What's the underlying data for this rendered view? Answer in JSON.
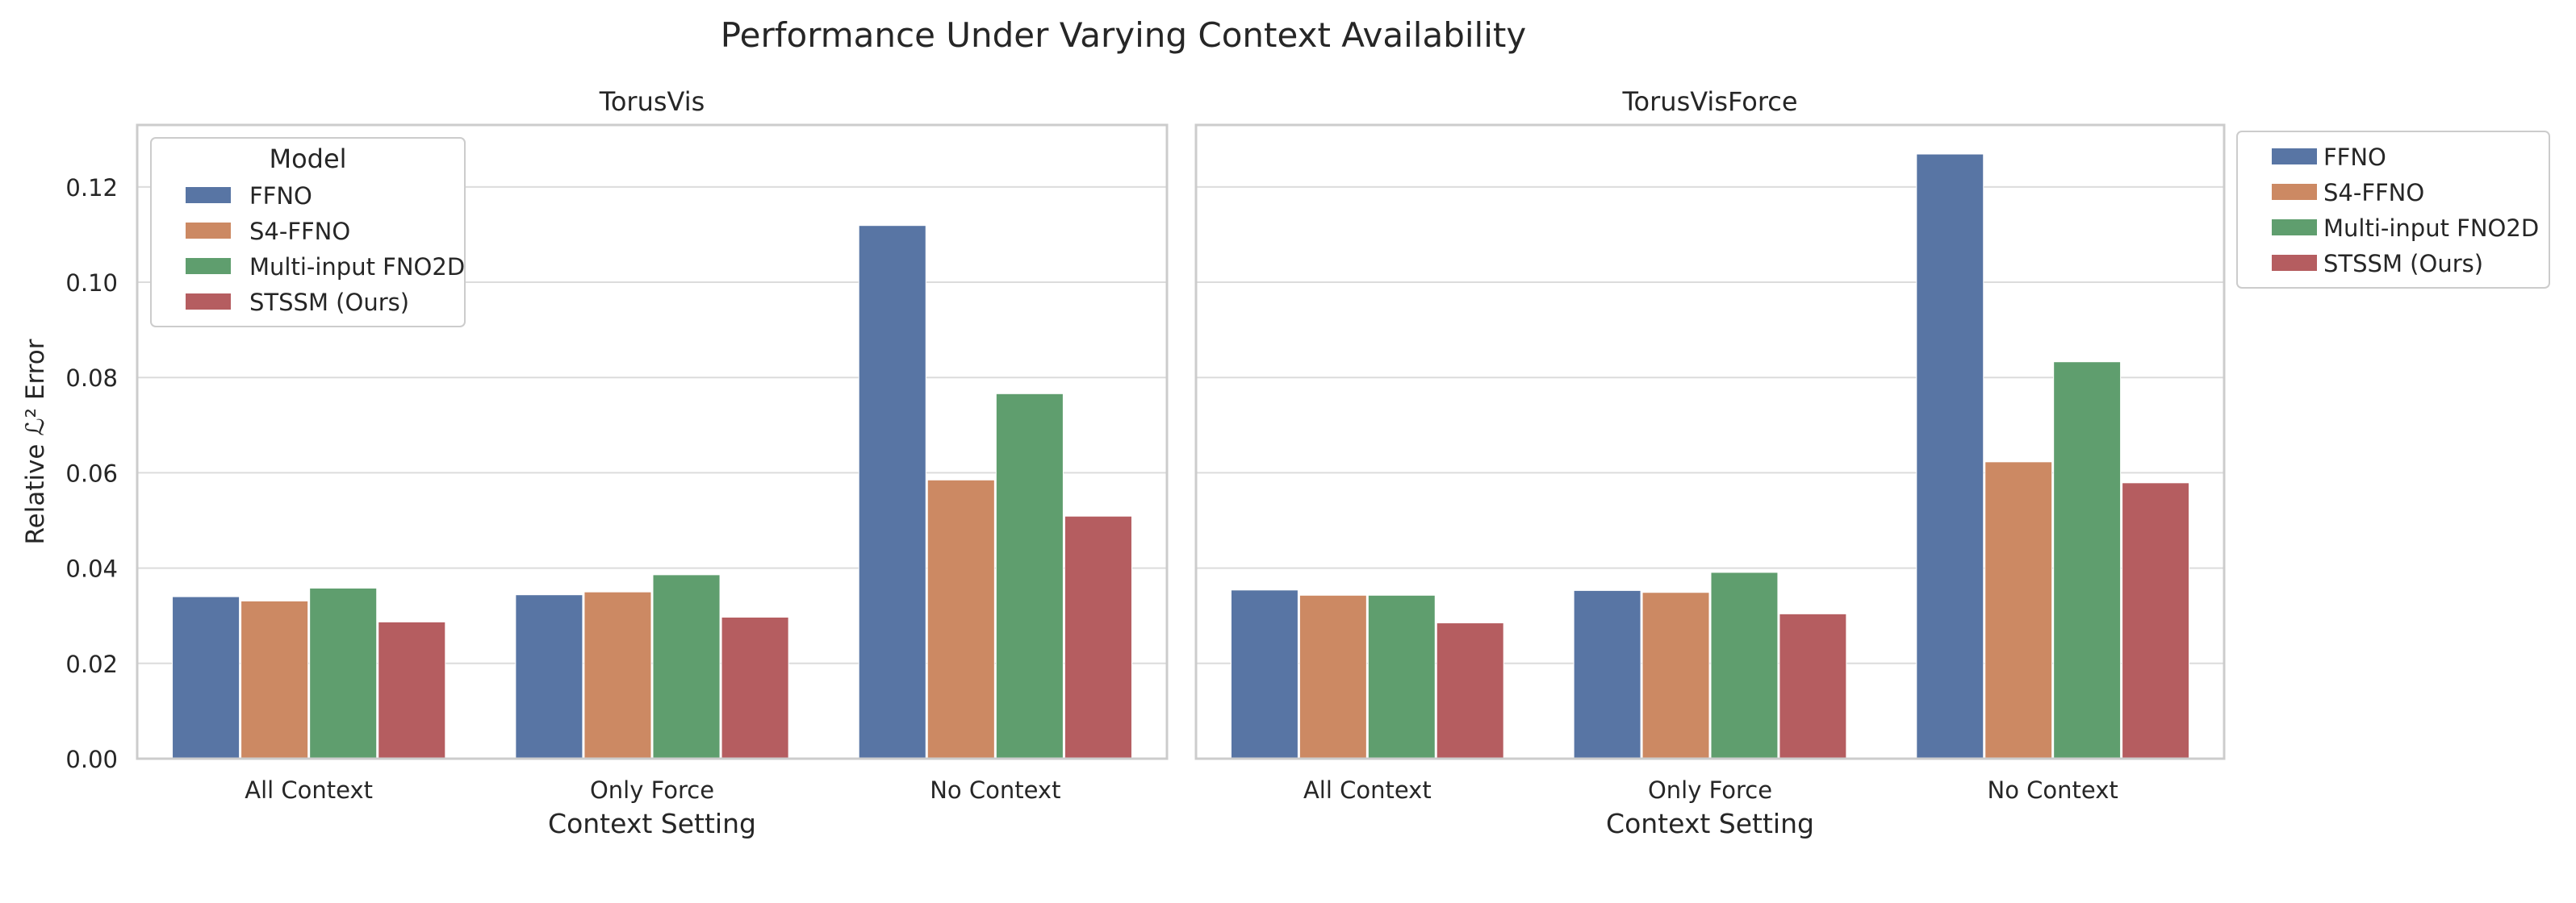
{
  "chart_data": {
    "type": "bar",
    "title": "Performance Under Varying Context Availability",
    "ylabel": "Relative ℒ² Error",
    "xlabel": "Context Setting",
    "ylim": [
      0,
      0.133
    ],
    "yticks": [
      "0.00",
      "0.02",
      "0.04",
      "0.06",
      "0.08",
      "0.10",
      "0.12"
    ],
    "grid": true,
    "categories": [
      "All Context",
      "Only Force",
      "No Context"
    ],
    "series_names": [
      "FFNO",
      "S4-FFNO",
      "Multi-input FNO2D",
      "STSSM (Ours)"
    ],
    "colors": [
      "#5875a4",
      "#cc8963",
      "#5f9e6e",
      "#b55d60"
    ],
    "legend_title": "Model",
    "panels": [
      {
        "title": "TorusVis",
        "legend": "upper-left inside",
        "series": [
          {
            "name": "FFNO",
            "values": [
              0.034,
              0.0344,
              0.1119
            ]
          },
          {
            "name": "S4-FFNO",
            "values": [
              0.0331,
              0.035,
              0.0585
            ]
          },
          {
            "name": "Multi-input FNO2D",
            "values": [
              0.0358,
              0.0386,
              0.0766
            ]
          },
          {
            "name": "STSSM (Ours)",
            "values": [
              0.0287,
              0.0297,
              0.0509
            ]
          }
        ]
      },
      {
        "title": "TorusVisForce",
        "legend": "outside right",
        "series": [
          {
            "name": "FFNO",
            "values": [
              0.0354,
              0.0353,
              0.1269
            ]
          },
          {
            "name": "S4-FFNO",
            "values": [
              0.0343,
              0.0349,
              0.0623
            ]
          },
          {
            "name": "Multi-input FNO2D",
            "values": [
              0.0343,
              0.0391,
              0.0833
            ]
          },
          {
            "name": "STSSM (Ours)",
            "values": [
              0.0285,
              0.0304,
              0.0579
            ]
          }
        ]
      }
    ]
  }
}
